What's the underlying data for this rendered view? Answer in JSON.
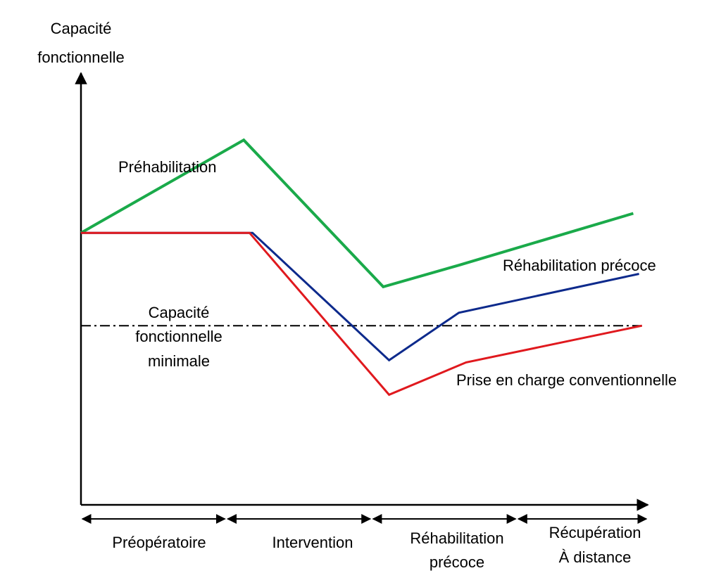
{
  "chart_data": {
    "type": "line",
    "title": "",
    "ylabel_lines": [
      "Capacité",
      "fonctionnelle"
    ],
    "xlabel": "",
    "grid": false,
    "legend": "inline labels",
    "phases": [
      {
        "label_lines": [
          "Préopératoire"
        ]
      },
      {
        "label_lines": [
          "Intervention"
        ]
      },
      {
        "label_lines": [
          "Réhabilitation",
          "précoce"
        ]
      },
      {
        "label_lines": [
          "Récupération",
          "À distance"
        ]
      }
    ],
    "phase_bounds": [
      0,
      1,
      2,
      3,
      3.9
    ],
    "ylim": [
      0,
      100
    ],
    "xlim": [
      0,
      3.9
    ],
    "series": [
      {
        "name": "Préhabilitation",
        "color": "#1aaa4a",
        "points": [
          [
            0,
            63
          ],
          [
            1.12,
            84.5
          ],
          [
            2.08,
            50.5
          ],
          [
            2.6,
            55.5
          ],
          [
            3.8,
            67.5
          ]
        ]
      },
      {
        "name": "Réhabilitation précoce",
        "color": "#0d2a8c",
        "points": [
          [
            0,
            63
          ],
          [
            1.18,
            63
          ],
          [
            2.12,
            33.5
          ],
          [
            2.6,
            44.5
          ],
          [
            3.84,
            53.5
          ]
        ]
      },
      {
        "name": "Prise en charge conventionnelle",
        "color": "#e0191e",
        "points": [
          [
            0,
            63
          ],
          [
            1.16,
            63
          ],
          [
            2.12,
            25.5
          ],
          [
            2.65,
            33
          ],
          [
            3.86,
            41.5
          ]
        ]
      }
    ],
    "reference_line": {
      "label_lines": [
        "Capacité",
        "fonctionnelle",
        "minimale"
      ],
      "y": 41.5,
      "x_range": [
        0,
        3.86
      ],
      "style": "dash-dot"
    }
  }
}
